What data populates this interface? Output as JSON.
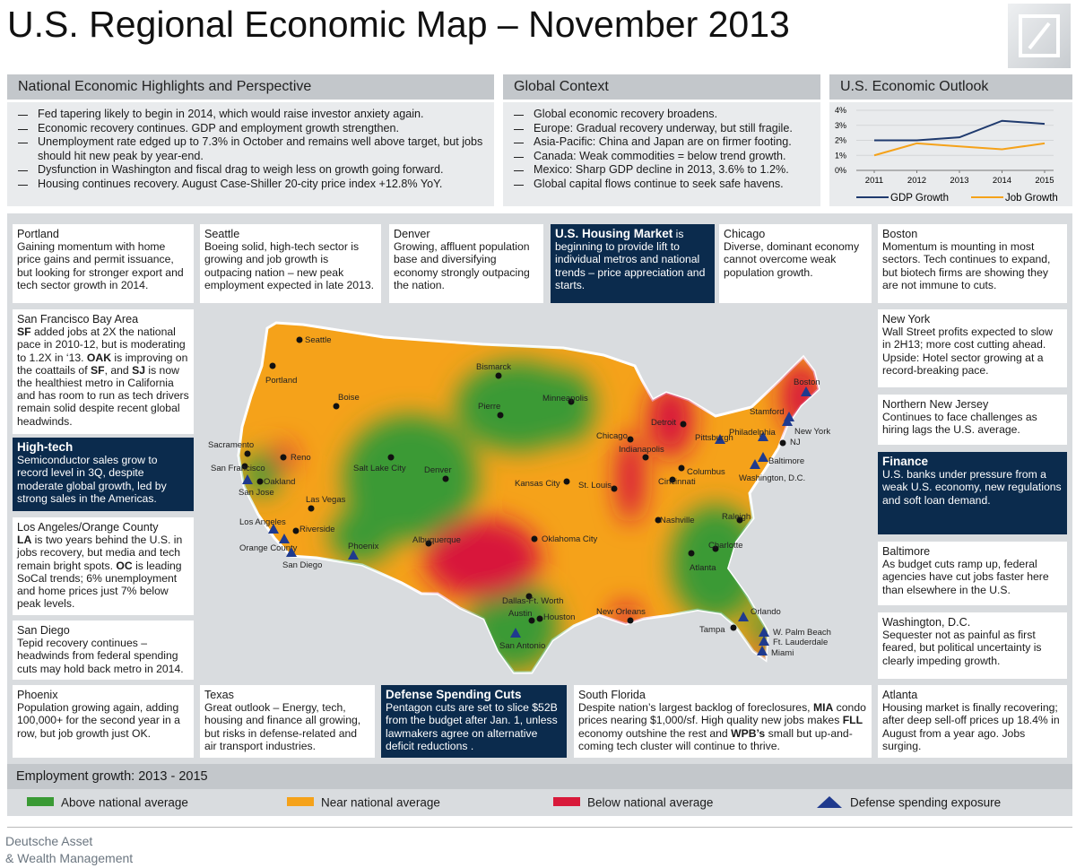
{
  "header": {
    "title": "U.S. Regional Economic Map – November 2013"
  },
  "national": {
    "heading": "National Economic Highlights and Perspective",
    "items": [
      "Fed tapering likely to begin in 2014, which would raise investor anxiety again.",
      "Economic recovery continues. GDP and employment growth strengthen.",
      "Unemployment rate edged up to 7.3% in October and remains well above target, but jobs should hit new peak by year-end.",
      "Dysfunction in Washington and fiscal drag to weigh less on growth going forward.",
      "Housing continues recovery. August Case-Shiller 20-city price index  +12.8% YoY."
    ]
  },
  "global": {
    "heading": "Global Context",
    "items": [
      "Global economic recovery broadens.",
      "Europe: Gradual recovery underway, but still fragile.",
      "Asia-Pacific: China and Japan are on firmer footing.",
      "Canada: Weak commodities = below trend growth.",
      "Mexico: Sharp GDP decline in 2013, 3.6% to 1.2%.",
      "Global capital flows continue to seek safe havens."
    ]
  },
  "outlook": {
    "heading": "U.S. Economic Outlook",
    "chart": {
      "type": "line",
      "categories": [
        "2011",
        "2012",
        "2013",
        "2014",
        "2015"
      ],
      "series": [
        {
          "name": "GDP Growth",
          "color": "#1f3a6e",
          "values": [
            2.0,
            2.0,
            2.2,
            3.3,
            3.1
          ]
        },
        {
          "name": "Job Growth",
          "color": "#f5a21a",
          "values": [
            1.0,
            1.8,
            1.6,
            1.4,
            1.8
          ]
        }
      ],
      "ylim": [
        0,
        4
      ],
      "yticks": [
        {
          "value": 0,
          "label": "0%"
        },
        {
          "value": 1,
          "label": "1%"
        },
        {
          "value": 2,
          "label": "2%"
        },
        {
          "value": 3,
          "label": "3%"
        },
        {
          "value": 4,
          "label": "4%"
        }
      ]
    }
  },
  "panels": [
    {
      "title": "Portland",
      "body": [
        "Gaining momentum with home price gains and permit issuance, but looking for stronger export and tech sector growth in 2014."
      ]
    },
    {
      "title": "Seattle",
      "body": [
        "Boeing solid, high-tech sector is growing and job growth is outpacing nation – new peak employment expected in late 2013."
      ]
    },
    {
      "title": "Denver",
      "body": [
        "Growing, affluent population base and diversifying economy strongly outpacing the nation."
      ]
    },
    {
      "title": "U.S. Housing Market",
      "dark": true,
      "title_inline": true,
      "body": [
        " is beginning to provide lift to individual metros and national trends – price appreciation and starts."
      ]
    },
    {
      "title": "Chicago",
      "body": [
        "Diverse, dominant economy cannot overcome weak population growth."
      ]
    },
    {
      "title": "Boston",
      "body": [
        "Momentum is mounting in most sectors. Tech continues to expand, but biotech firms are showing they are not immune to cuts."
      ]
    },
    {
      "title": "San Francisco Bay Area",
      "body": [
        {
          "text": "SF",
          "bold": true
        },
        " added jobs at 2X the national pace in 2010-12, but is moderating to 1.2X in ‘13. ",
        {
          "text": "OAK",
          "bold": true
        },
        " is improving on the coattails of ",
        {
          "text": "SF",
          "bold": true
        },
        ", and ",
        {
          "text": "SJ",
          "bold": true
        },
        " is now the healthiest metro in California and has room to run as tech drivers remain solid despite recent global headwinds."
      ]
    },
    {
      "title": "High-tech",
      "dark": true,
      "body": [
        "Semiconductor sales grow to record level in 3Q, despite moderate global growth, led by strong sales in the Americas."
      ]
    },
    {
      "title": "Los Angeles/Orange County",
      "body": [
        {
          "text": "LA",
          "bold": true
        },
        " is two years behind the U.S. in jobs recovery, but media and tech remain bright spots. ",
        {
          "text": "OC",
          "bold": true
        },
        " is leading SoCal trends; 6% unemployment and home prices just 7% below peak levels."
      ]
    },
    {
      "title": "San Diego",
      "body": [
        "Tepid recovery continues – headwinds from federal spending cuts may hold back metro in 2014."
      ]
    },
    {
      "title": "New York",
      "body": [
        "Wall Street profits expected to slow in 2H13; more cost cutting ahead. Upside:  Hotel sector  growing at a record-breaking pace."
      ]
    },
    {
      "title": "Northern New Jersey",
      "body": [
        "Continues  to face challenges as hiring lags the U.S. average."
      ]
    },
    {
      "title": "Finance",
      "dark": true,
      "body": [
        "U.S. banks under pressure from a weak U.S. economy, new regulations and soft loan demand."
      ]
    },
    {
      "title": "Baltimore",
      "body": [
        "As budget cuts ramp up, federal agencies have cut jobs faster here than elsewhere in the U.S."
      ]
    },
    {
      "title": "Washington, D.C.",
      "body": [
        "Sequester not as painful as first feared, but political uncertainty is clearly impeding growth."
      ]
    },
    {
      "title": "Phoenix",
      "body": [
        "Population growing again, adding 100,000+ for the second year in a row, but job growth just OK."
      ]
    },
    {
      "title": "Texas",
      "body": [
        "Great outlook – Energy, tech, housing and finance all growing, but risks in defense-related and air transport industries."
      ]
    },
    {
      "title": "Defense Spending Cuts",
      "dark": true,
      "body": [
        "Pentagon cuts are set to slice $52B from the budget after Jan. 1, unless lawmakers agree on alternative deficit reductions ."
      ]
    },
    {
      "title": "South Florida",
      "body": [
        "Despite nation’s largest backlog of foreclosures, ",
        {
          "text": "MIA",
          "bold": true
        },
        " condo prices nearing $1,000/sf. High quality new jobs makes ",
        {
          "text": "FLL",
          "bold": true
        },
        " economy outshine the rest and ",
        {
          "text": "WPB’s",
          "bold": true
        },
        " small but up-and-coming tech cluster will continue to thrive."
      ]
    },
    {
      "title": "Atlanta",
      "body": [
        "Housing  market is finally recovering; after deep sell-off prices up 18.4% in August from a year ago. Jobs surging."
      ]
    }
  ],
  "cities": [
    {
      "name": "Seattle",
      "marker": "dot"
    },
    {
      "name": "Portland",
      "marker": "dot"
    },
    {
      "name": "Boise",
      "marker": "dot"
    },
    {
      "name": "Bismarck",
      "marker": "dot"
    },
    {
      "name": "Minneapolis",
      "marker": "dot"
    },
    {
      "name": "Pierre",
      "marker": "dot"
    },
    {
      "name": "Chicago",
      "marker": "dot"
    },
    {
      "name": "Detroit",
      "marker": "dot"
    },
    {
      "name": "Pittsburgh",
      "marker": "triangle"
    },
    {
      "name": "Philadelphia",
      "marker": "triangle"
    },
    {
      "name": "Stamford",
      "marker": "triangle"
    },
    {
      "name": "New York",
      "marker": "triangle"
    },
    {
      "name": "NJ",
      "marker": "dot"
    },
    {
      "name": "Boston",
      "marker": "triangle"
    },
    {
      "name": "Baltimore",
      "marker": "triangle"
    },
    {
      "name": "Washington, D.C.",
      "marker": "triangle"
    },
    {
      "name": "Indianapolis",
      "marker": "dot"
    },
    {
      "name": "Columbus",
      "marker": "dot"
    },
    {
      "name": "Cincinnati",
      "marker": "dot"
    },
    {
      "name": "Sacramento",
      "marker": "dot"
    },
    {
      "name": "Reno",
      "marker": "dot"
    },
    {
      "name": "San Francisco",
      "marker": "dot"
    },
    {
      "name": "Oakland",
      "marker": "dot"
    },
    {
      "name": "San Jose",
      "marker": "triangle"
    },
    {
      "name": "Salt Lake City",
      "marker": "dot"
    },
    {
      "name": "Denver",
      "marker": "dot"
    },
    {
      "name": "Kansas City",
      "marker": "dot"
    },
    {
      "name": "St. Louis",
      "marker": "dot"
    },
    {
      "name": "Las Vegas",
      "marker": "dot"
    },
    {
      "name": "Los Angeles",
      "marker": "triangle"
    },
    {
      "name": "Riverside",
      "marker": "dot"
    },
    {
      "name": "Orange County",
      "marker": "triangle"
    },
    {
      "name": "San Diego",
      "marker": "triangle"
    },
    {
      "name": "Phoenix",
      "marker": "triangle"
    },
    {
      "name": "Albuquerque",
      "marker": "dot"
    },
    {
      "name": "Oklahoma City",
      "marker": "dot"
    },
    {
      "name": "Nashville",
      "marker": "dot"
    },
    {
      "name": "Raleigh",
      "marker": "dot"
    },
    {
      "name": "Charlotte",
      "marker": "dot"
    },
    {
      "name": "Atlanta",
      "marker": "dot"
    },
    {
      "name": "Dallas-Ft. Worth",
      "marker": "dot"
    },
    {
      "name": "Austin",
      "marker": "dot"
    },
    {
      "name": "Houston",
      "marker": "dot"
    },
    {
      "name": "San Antonio",
      "marker": "triangle"
    },
    {
      "name": "New Orleans",
      "marker": "dot"
    },
    {
      "name": "Tampa",
      "marker": "dot"
    },
    {
      "name": "Orlando",
      "marker": "triangle"
    },
    {
      "name": "W. Palm Beach",
      "marker": "triangle"
    },
    {
      "name": "Ft. Lauderdale",
      "marker": "triangle"
    },
    {
      "name": "Miami",
      "marker": "triangle"
    }
  ],
  "employment": {
    "heading": "Employment growth:  2013 - 2015",
    "legend": [
      {
        "label": "Above national average",
        "color": "#3a9a35",
        "shape": "rect"
      },
      {
        "label": "Near national average",
        "color": "#f5a21a",
        "shape": "rect"
      },
      {
        "label": "Below national average",
        "color": "#d8193a",
        "shape": "rect"
      },
      {
        "label": "Defense spending exposure",
        "color": "#1f3a8e",
        "shape": "triangle"
      }
    ]
  },
  "footer": {
    "lines": [
      "Deutsche Asset",
      "& Wealth Management"
    ]
  }
}
